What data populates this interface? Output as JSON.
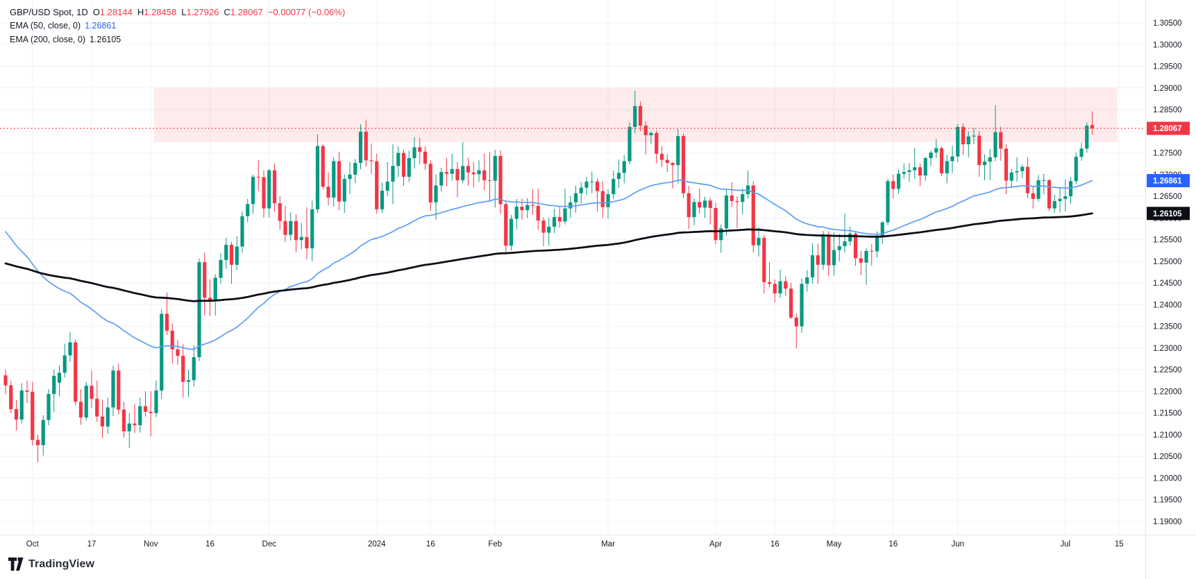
{
  "legend": {
    "symbol": "GBP/USD Spot, 1D",
    "ohlc": {
      "o_label": "O",
      "o": "1.28144",
      "h_label": "H",
      "h": "1.28458",
      "l_label": "L",
      "l": "1.27926",
      "c_label": "C",
      "c": "1.28067",
      "change": "−0.00077 (−0.06%)"
    },
    "indicators": [
      {
        "label": "EMA (50, close, 0)",
        "value": "1.26861",
        "color": "#2962FF"
      },
      {
        "label": "EMA (200, close, 0)",
        "value": "1.26105",
        "color": "#131722"
      }
    ]
  },
  "watermark": {
    "brand": "TradingView"
  },
  "colors": {
    "up": "#089981",
    "down": "#F23645",
    "grid": "#eff2f7",
    "axis_text": "#131722",
    "ema50_line": "#5b9cf6",
    "ema200_line": "#0c0e15",
    "price_line": "#F23645",
    "zone_fill": "rgba(242,54,69,0.10)",
    "axis_border": "#e4e7ee"
  },
  "chart_data": {
    "type": "candlestick",
    "title": "GBP/USD Spot, 1D",
    "xlabel": "",
    "ylabel": "",
    "grid": true,
    "y_axis": {
      "min": 1.19,
      "max": 1.305,
      "tick_step": 0.005,
      "tick_labels": [
        "1.19000",
        "1.19500",
        "1.20000",
        "1.20500",
        "1.21000",
        "1.21500",
        "1.22000",
        "1.22500",
        "1.23000",
        "1.23500",
        "1.24000",
        "1.24500",
        "1.25000",
        "1.25500",
        "1.26000",
        "1.26500",
        "1.27000",
        "1.27500",
        "1.28000",
        "1.28500",
        "1.29000",
        "1.29500",
        "1.30000",
        "1.30500"
      ]
    },
    "x_labels": [
      {
        "text": "Oct",
        "index": 5
      },
      {
        "text": "17",
        "index": 16
      },
      {
        "text": "Nov",
        "index": 27
      },
      {
        "text": "16",
        "index": 38
      },
      {
        "text": "Dec",
        "index": 49
      },
      {
        "text": "2024",
        "index": 69
      },
      {
        "text": "16",
        "index": 79
      },
      {
        "text": "Feb",
        "index": 91
      },
      {
        "text": "Mar",
        "index": 112
      },
      {
        "text": "Apr",
        "index": 132
      },
      {
        "text": "16",
        "index": 143
      },
      {
        "text": "May",
        "index": 154
      },
      {
        "text": "16",
        "index": 165
      },
      {
        "text": "Jun",
        "index": 177
      },
      {
        "text": "Jul",
        "index": 197
      },
      {
        "text": "15",
        "index": 207
      }
    ],
    "zone": {
      "price_top": 1.29,
      "price_bottom": 1.2775,
      "start_index": 27.6,
      "end_index": 206.7
    },
    "price_line": {
      "value": 1.28067,
      "label": "1.28067"
    },
    "price_badges": [
      {
        "text": "1.28067",
        "value": 1.28067,
        "bg": "#F23645",
        "name": "current-price"
      },
      {
        "text": "1.26861",
        "value": 1.26861,
        "bg": "#2962FF",
        "name": "ema50-value"
      },
      {
        "text": "1.26105",
        "value": 1.26105,
        "bg": "#0c0e15",
        "name": "ema200-value"
      }
    ],
    "emas": [
      {
        "period": 50,
        "seed": 1.2583,
        "final": 1.26861,
        "color": "#5b9cf6",
        "width": 1.7
      },
      {
        "period": 200,
        "seed": 1.2498,
        "final": 1.26105,
        "color": "#0c0e15",
        "width": 2.8
      }
    ],
    "candles": [
      [
        1.2237,
        1.225,
        1.2193,
        1.2214
      ],
      [
        1.2214,
        1.2225,
        1.215,
        1.2159
      ],
      [
        1.2159,
        1.218,
        1.211,
        1.2135
      ],
      [
        1.2135,
        1.2219,
        1.2126,
        1.2202
      ],
      [
        1.2202,
        1.2225,
        1.2173,
        1.2199
      ],
      [
        1.2199,
        1.2222,
        1.2075,
        1.2088
      ],
      [
        1.2088,
        1.21,
        1.2037,
        1.2076
      ],
      [
        1.2076,
        1.2145,
        1.2052,
        1.2134
      ],
      [
        1.2134,
        1.2205,
        1.2122,
        1.2194
      ],
      [
        1.2194,
        1.2251,
        1.2153,
        1.2236
      ],
      [
        1.222,
        1.226,
        1.2188,
        1.2243
      ],
      [
        1.2243,
        1.231,
        1.2232,
        1.2283
      ],
      [
        1.2283,
        1.2337,
        1.2268,
        1.2313
      ],
      [
        1.2313,
        1.232,
        1.2168,
        1.2176
      ],
      [
        1.2176,
        1.2205,
        1.2123,
        1.214
      ],
      [
        1.214,
        1.2222,
        1.2133,
        1.2213
      ],
      [
        1.2213,
        1.2248,
        1.2162,
        1.2183
      ],
      [
        1.2183,
        1.2225,
        1.213,
        1.2142
      ],
      [
        1.2142,
        1.2181,
        1.2093,
        1.2119
      ],
      [
        1.2119,
        1.2186,
        1.2102,
        1.2163
      ],
      [
        1.2163,
        1.2259,
        1.2143,
        1.2248
      ],
      [
        1.2248,
        1.2264,
        1.2146,
        1.2158
      ],
      [
        1.2158,
        1.2176,
        1.2094,
        1.2108
      ],
      [
        1.2108,
        1.215,
        1.207,
        1.2126
      ],
      [
        1.2126,
        1.2171,
        1.2104,
        1.2122
      ],
      [
        1.2122,
        1.2186,
        1.2105,
        1.2166
      ],
      [
        1.2166,
        1.22,
        1.2142,
        1.2153
      ],
      [
        1.2153,
        1.22,
        1.2096,
        1.215
      ],
      [
        1.215,
        1.2225,
        1.2141,
        1.2202
      ],
      [
        1.2202,
        1.2389,
        1.2183,
        1.2379
      ],
      [
        1.2379,
        1.2428,
        1.233,
        1.234
      ],
      [
        1.234,
        1.2357,
        1.2264,
        1.2297
      ],
      [
        1.2297,
        1.2319,
        1.2261,
        1.2282
      ],
      [
        1.2282,
        1.2309,
        1.2186,
        1.2222
      ],
      [
        1.2222,
        1.225,
        1.2187,
        1.2226
      ],
      [
        1.2226,
        1.2306,
        1.2211,
        1.2279
      ],
      [
        1.2279,
        1.2506,
        1.227,
        1.2498
      ],
      [
        1.2498,
        1.252,
        1.2375,
        1.2416
      ],
      [
        1.2416,
        1.2459,
        1.2374,
        1.241
      ],
      [
        1.241,
        1.247,
        1.2375,
        1.2462
      ],
      [
        1.2462,
        1.2519,
        1.2448,
        1.2503
      ],
      [
        1.2503,
        1.2554,
        1.2483,
        1.2538
      ],
      [
        1.2538,
        1.2545,
        1.2448,
        1.2492
      ],
      [
        1.2492,
        1.2558,
        1.248,
        1.2534
      ],
      [
        1.2534,
        1.2615,
        1.252,
        1.2604
      ],
      [
        1.2604,
        1.2644,
        1.259,
        1.2632
      ],
      [
        1.2632,
        1.27,
        1.261,
        1.2695
      ],
      [
        1.2695,
        1.2733,
        1.2662,
        1.2694
      ],
      [
        1.2694,
        1.271,
        1.26,
        1.2622
      ],
      [
        1.2622,
        1.2713,
        1.2601,
        1.271
      ],
      [
        1.271,
        1.2726,
        1.2615,
        1.2634
      ],
      [
        1.2634,
        1.265,
        1.2573,
        1.2593
      ],
      [
        1.2593,
        1.2628,
        1.2545,
        1.2561
      ],
      [
        1.2561,
        1.2613,
        1.2548,
        1.2593
      ],
      [
        1.2593,
        1.2608,
        1.2521,
        1.2549
      ],
      [
        1.2549,
        1.2589,
        1.2528,
        1.2556
      ],
      [
        1.2556,
        1.2625,
        1.2505,
        1.253
      ],
      [
        1.253,
        1.264,
        1.25,
        1.262
      ],
      [
        1.262,
        1.2793,
        1.2612,
        1.2766
      ],
      [
        1.2766,
        1.277,
        1.2666,
        1.2672
      ],
      [
        1.2672,
        1.2705,
        1.2629,
        1.2647
      ],
      [
        1.2647,
        1.274,
        1.2627,
        1.2731
      ],
      [
        1.2731,
        1.2753,
        1.2618,
        1.2638
      ],
      [
        1.2638,
        1.27,
        1.2612,
        1.269
      ],
      [
        1.269,
        1.2729,
        1.2655,
        1.27
      ],
      [
        1.27,
        1.2736,
        1.268,
        1.2727
      ],
      [
        1.2727,
        1.2816,
        1.2712,
        1.2799
      ],
      [
        1.2799,
        1.2827,
        1.2718,
        1.2733
      ],
      [
        1.2733,
        1.2772,
        1.2702,
        1.2731
      ],
      [
        1.2731,
        1.2748,
        1.261,
        1.262
      ],
      [
        1.262,
        1.2682,
        1.2612,
        1.2663
      ],
      [
        1.2663,
        1.2729,
        1.265,
        1.2684
      ],
      [
        1.2684,
        1.277,
        1.2632,
        1.272
      ],
      [
        1.272,
        1.2765,
        1.2694,
        1.275
      ],
      [
        1.275,
        1.2758,
        1.2674,
        1.2695
      ],
      [
        1.2695,
        1.2755,
        1.2683,
        1.2738
      ],
      [
        1.2738,
        1.2787,
        1.2714,
        1.2763
      ],
      [
        1.2763,
        1.2785,
        1.2723,
        1.2753
      ],
      [
        1.2753,
        1.2765,
        1.2711,
        1.2725
      ],
      [
        1.2725,
        1.2733,
        1.2617,
        1.2636
      ],
      [
        1.2636,
        1.27,
        1.2596,
        1.2675
      ],
      [
        1.2675,
        1.2716,
        1.2661,
        1.2706
      ],
      [
        1.2706,
        1.2738,
        1.2673,
        1.2702
      ],
      [
        1.2702,
        1.2748,
        1.2686,
        1.2713
      ],
      [
        1.2713,
        1.2729,
        1.2648,
        1.2687
      ],
      [
        1.2687,
        1.2775,
        1.268,
        1.272
      ],
      [
        1.272,
        1.2739,
        1.2674,
        1.2705
      ],
      [
        1.2705,
        1.2729,
        1.267,
        1.2701
      ],
      [
        1.2701,
        1.2733,
        1.2683,
        1.271
      ],
      [
        1.271,
        1.2749,
        1.2664,
        1.2687
      ],
      [
        1.2687,
        1.2752,
        1.2637,
        1.2686
      ],
      [
        1.2686,
        1.2757,
        1.2624,
        1.2743
      ],
      [
        1.2743,
        1.2756,
        1.261,
        1.2632
      ],
      [
        1.2632,
        1.264,
        1.2519,
        1.2536
      ],
      [
        1.2536,
        1.2607,
        1.2525,
        1.2598
      ],
      [
        1.2598,
        1.2644,
        1.2574,
        1.2626
      ],
      [
        1.2626,
        1.2645,
        1.2596,
        1.2618
      ],
      [
        1.2618,
        1.2646,
        1.26,
        1.263
      ],
      [
        1.263,
        1.2666,
        1.2607,
        1.2628
      ],
      [
        1.2628,
        1.2668,
        1.2573,
        1.2594
      ],
      [
        1.2594,
        1.2602,
        1.2535,
        1.2566
      ],
      [
        1.2566,
        1.26,
        1.2536,
        1.258
      ],
      [
        1.258,
        1.2621,
        1.2565,
        1.2602
      ],
      [
        1.2602,
        1.2625,
        1.2578,
        1.2592
      ],
      [
        1.2592,
        1.2668,
        1.2585,
        1.2622
      ],
      [
        1.2622,
        1.2651,
        1.26,
        1.2636
      ],
      [
        1.2636,
        1.2674,
        1.2612,
        1.2657
      ],
      [
        1.2657,
        1.2683,
        1.2633,
        1.267
      ],
      [
        1.267,
        1.2695,
        1.2653,
        1.2684
      ],
      [
        1.2684,
        1.2707,
        1.2657,
        1.2684
      ],
      [
        1.2684,
        1.2692,
        1.2615,
        1.2662
      ],
      [
        1.2662,
        1.2685,
        1.26,
        1.2625
      ],
      [
        1.2625,
        1.2666,
        1.2598,
        1.2655
      ],
      [
        1.2655,
        1.2709,
        1.2643,
        1.269
      ],
      [
        1.269,
        1.2735,
        1.267,
        1.2704
      ],
      [
        1.2704,
        1.2745,
        1.268,
        1.2731
      ],
      [
        1.2731,
        1.282,
        1.2724,
        1.281
      ],
      [
        1.281,
        1.2894,
        1.2795,
        1.2858
      ],
      [
        1.2858,
        1.2868,
        1.28,
        1.2813
      ],
      [
        1.2813,
        1.2823,
        1.2746,
        1.2791
      ],
      [
        1.2791,
        1.28,
        1.2771,
        1.2796
      ],
      [
        1.2796,
        1.2802,
        1.2726,
        1.2748
      ],
      [
        1.2748,
        1.2765,
        1.2718,
        1.2734
      ],
      [
        1.2734,
        1.2747,
        1.2706,
        1.2727
      ],
      [
        1.2727,
        1.2729,
        1.2668,
        1.2722
      ],
      [
        1.2722,
        1.2805,
        1.268,
        1.2789
      ],
      [
        1.2789,
        1.2795,
        1.2646,
        1.2657
      ],
      [
        1.2657,
        1.2674,
        1.2575,
        1.2602
      ],
      [
        1.2602,
        1.2645,
        1.2583,
        1.2637
      ],
      [
        1.2637,
        1.2668,
        1.261,
        1.2624
      ],
      [
        1.2624,
        1.2649,
        1.26,
        1.264
      ],
      [
        1.264,
        1.2646,
        1.2585,
        1.2623
      ],
      [
        1.2623,
        1.2635,
        1.254,
        1.2549
      ],
      [
        1.2549,
        1.2585,
        1.252,
        1.2576
      ],
      [
        1.2576,
        1.2667,
        1.256,
        1.2652
      ],
      [
        1.2652,
        1.2683,
        1.2625,
        1.2639
      ],
      [
        1.2639,
        1.265,
        1.2577,
        1.2637
      ],
      [
        1.2637,
        1.2668,
        1.2609,
        1.2655
      ],
      [
        1.2655,
        1.2709,
        1.2645,
        1.2675
      ],
      [
        1.2675,
        1.2685,
        1.252,
        1.2537
      ],
      [
        1.2537,
        1.2578,
        1.2511,
        1.2554
      ],
      [
        1.2554,
        1.256,
        1.2426,
        1.2452
      ],
      [
        1.2452,
        1.2498,
        1.244,
        1.2448
      ],
      [
        1.2448,
        1.2458,
        1.2405,
        1.2426
      ],
      [
        1.2426,
        1.2481,
        1.2415,
        1.2454
      ],
      [
        1.2454,
        1.2466,
        1.242,
        1.2437
      ],
      [
        1.2437,
        1.245,
        1.2367,
        1.237
      ],
      [
        1.237,
        1.238,
        1.2299,
        1.235
      ],
      [
        1.235,
        1.246,
        1.2335,
        1.2448
      ],
      [
        1.2448,
        1.248,
        1.243,
        1.2463
      ],
      [
        1.2463,
        1.2542,
        1.2449,
        1.2514
      ],
      [
        1.2514,
        1.2541,
        1.2448,
        1.2492
      ],
      [
        1.2492,
        1.257,
        1.248,
        1.2562
      ],
      [
        1.2562,
        1.2569,
        1.2466,
        1.2491
      ],
      [
        1.2491,
        1.2567,
        1.2467,
        1.2526
      ],
      [
        1.2526,
        1.2563,
        1.25,
        1.2535
      ],
      [
        1.2535,
        1.261,
        1.252,
        1.2546
      ],
      [
        1.2546,
        1.258,
        1.2536,
        1.2564
      ],
      [
        1.2564,
        1.257,
        1.249,
        1.2507
      ],
      [
        1.2507,
        1.2524,
        1.2468,
        1.2497
      ],
      [
        1.2497,
        1.253,
        1.2446,
        1.2524
      ],
      [
        1.2524,
        1.254,
        1.249,
        1.2523
      ],
      [
        1.2523,
        1.2569,
        1.2509,
        1.2559
      ],
      [
        1.2559,
        1.2593,
        1.254,
        1.259
      ],
      [
        1.259,
        1.269,
        1.2583,
        1.2685
      ],
      [
        1.2685,
        1.27,
        1.2645,
        1.2667
      ],
      [
        1.2667,
        1.2712,
        1.2656,
        1.2702
      ],
      [
        1.2702,
        1.2726,
        1.269,
        1.2706
      ],
      [
        1.2706,
        1.2727,
        1.2683,
        1.271
      ],
      [
        1.271,
        1.2761,
        1.269,
        1.2717
      ],
      [
        1.2717,
        1.2726,
        1.2674,
        1.2698
      ],
      [
        1.2698,
        1.2742,
        1.2686,
        1.2738
      ],
      [
        1.2738,
        1.2756,
        1.272,
        1.2751
      ],
      [
        1.2751,
        1.2782,
        1.2738,
        1.2761
      ],
      [
        1.2761,
        1.2765,
        1.2696,
        1.2703
      ],
      [
        1.2703,
        1.2746,
        1.268,
        1.2731
      ],
      [
        1.2731,
        1.2766,
        1.2704,
        1.2742
      ],
      [
        1.2742,
        1.2817,
        1.2729,
        1.281
      ],
      [
        1.281,
        1.2818,
        1.2745,
        1.277
      ],
      [
        1.277,
        1.28,
        1.274,
        1.2788
      ],
      [
        1.2788,
        1.2808,
        1.277,
        1.279
      ],
      [
        1.279,
        1.28,
        1.2695,
        1.2722
      ],
      [
        1.2722,
        1.2747,
        1.2687,
        1.273
      ],
      [
        1.273,
        1.2759,
        1.2687,
        1.274
      ],
      [
        1.274,
        1.286,
        1.2731,
        1.2798
      ],
      [
        1.2798,
        1.281,
        1.2732,
        1.276
      ],
      [
        1.276,
        1.277,
        1.2655,
        1.2686
      ],
      [
        1.2686,
        1.2713,
        1.2669,
        1.2705
      ],
      [
        1.2705,
        1.274,
        1.2684,
        1.2708
      ],
      [
        1.2708,
        1.2724,
        1.2692,
        1.2718
      ],
      [
        1.2718,
        1.274,
        1.2646,
        1.2657
      ],
      [
        1.2657,
        1.2672,
        1.2622,
        1.2644
      ],
      [
        1.2644,
        1.2699,
        1.2638,
        1.2687
      ],
      [
        1.2687,
        1.2702,
        1.2655,
        1.2687
      ],
      [
        1.2687,
        1.269,
        1.2616,
        1.2622
      ],
      [
        1.2622,
        1.2654,
        1.2612,
        1.2639
      ],
      [
        1.2639,
        1.2672,
        1.2613,
        1.2644
      ],
      [
        1.2644,
        1.2689,
        1.2615,
        1.265
      ],
      [
        1.265,
        1.2695,
        1.2633,
        1.2685
      ],
      [
        1.2685,
        1.2751,
        1.2678,
        1.2741
      ],
      [
        1.2741,
        1.2774,
        1.2732,
        1.276
      ],
      [
        1.276,
        1.282,
        1.2751,
        1.2813
      ],
      [
        1.28144,
        1.28458,
        1.27926,
        1.28067
      ]
    ]
  }
}
